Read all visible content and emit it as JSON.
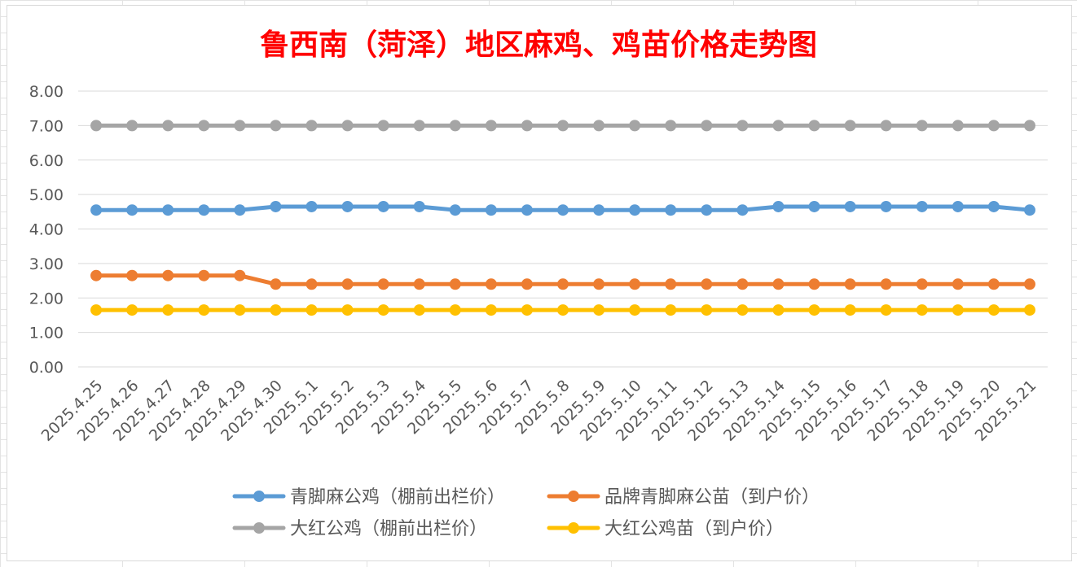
{
  "chart_data": {
    "type": "line",
    "title": "鲁西南（菏泽）地区麻鸡、鸡苗价格走势图",
    "xlabel": "",
    "ylabel": "",
    "ylim": [
      0,
      8
    ],
    "yticks": [
      "0.00",
      "1.00",
      "2.00",
      "3.00",
      "4.00",
      "5.00",
      "6.00",
      "7.00",
      "8.00"
    ],
    "categories": [
      "2025.4.25",
      "2025.4.26",
      "2025.4.27",
      "2025.4.28",
      "2025.4.29",
      "2025.4.30",
      "2025.5.1",
      "2025.5.2",
      "2025.5.3",
      "2025.5.4",
      "2025.5.5",
      "2025.5.6",
      "2025.5.7",
      "2025.5.8",
      "2025.5.9",
      "2025.5.10",
      "2025.5.11",
      "2025.5.12",
      "2025.5.13",
      "2025.5.14",
      "2025.5.15",
      "2025.5.16",
      "2025.5.17",
      "2025.5.18",
      "2025.5.19",
      "2025.5.20",
      "2025.5.21"
    ],
    "series": [
      {
        "name": "青脚麻公鸡（棚前出栏价）",
        "color": "#5b9bd5",
        "values": [
          4.55,
          4.55,
          4.55,
          4.55,
          4.55,
          4.65,
          4.65,
          4.65,
          4.65,
          4.65,
          4.55,
          4.55,
          4.55,
          4.55,
          4.55,
          4.55,
          4.55,
          4.55,
          4.55,
          4.65,
          4.65,
          4.65,
          4.65,
          4.65,
          4.65,
          4.65,
          4.55
        ]
      },
      {
        "name": "品牌青脚麻公苗（到户价）",
        "color": "#ed7d31",
        "values": [
          2.65,
          2.65,
          2.65,
          2.65,
          2.65,
          2.4,
          2.4,
          2.4,
          2.4,
          2.4,
          2.4,
          2.4,
          2.4,
          2.4,
          2.4,
          2.4,
          2.4,
          2.4,
          2.4,
          2.4,
          2.4,
          2.4,
          2.4,
          2.4,
          2.4,
          2.4,
          2.4
        ]
      },
      {
        "name": "大红公鸡（棚前出栏价）",
        "color": "#a5a5a5",
        "values": [
          7,
          7,
          7,
          7,
          7,
          7,
          7,
          7,
          7,
          7,
          7,
          7,
          7,
          7,
          7,
          7,
          7,
          7,
          7,
          7,
          7,
          7,
          7,
          7,
          7,
          7,
          7
        ]
      },
      {
        "name": "大红公鸡苗（到户价）",
        "color": "#ffc000",
        "values": [
          1.65,
          1.65,
          1.65,
          1.65,
          1.65,
          1.65,
          1.65,
          1.65,
          1.65,
          1.65,
          1.65,
          1.65,
          1.65,
          1.65,
          1.65,
          1.65,
          1.65,
          1.65,
          1.65,
          1.65,
          1.65,
          1.65,
          1.65,
          1.65,
          1.65,
          1.65,
          1.65
        ]
      }
    ],
    "draw_order": [
      2,
      0,
      1,
      3
    ],
    "grid": true,
    "legend_position": "bottom",
    "colors": {
      "title": "#ff0000",
      "gridline": "#d9d9d9",
      "axis_text": "#595959"
    }
  }
}
